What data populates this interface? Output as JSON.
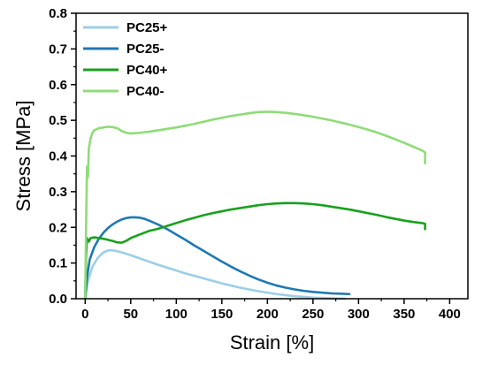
{
  "chart_data": {
    "type": "line",
    "title": "",
    "xlabel": "Strain [%]",
    "ylabel": "Stress [MPa]",
    "xlim": [
      -10,
      420
    ],
    "ylim": [
      0,
      0.8
    ],
    "xticks": [
      0,
      50,
      100,
      150,
      200,
      250,
      300,
      350,
      400
    ],
    "yticks": [
      0.0,
      0.1,
      0.2,
      0.3,
      0.4,
      0.5,
      0.6,
      0.7,
      0.8
    ],
    "xtick_labels": [
      "0",
      "50",
      "100",
      "150",
      "200",
      "250",
      "300",
      "350",
      "400"
    ],
    "ytick_labels": [
      "0.0",
      "0.1",
      "0.2",
      "0.3",
      "0.4",
      "0.5",
      "0.6",
      "0.7",
      "0.8"
    ],
    "grid": false,
    "legend_position": "top-left",
    "series": [
      {
        "name": "PC25+",
        "color": "#9ccfe6",
        "points": [
          [
            0,
            0
          ],
          [
            3,
            0.05
          ],
          [
            8,
            0.09
          ],
          [
            14,
            0.115
          ],
          [
            20,
            0.13
          ],
          [
            26,
            0.136
          ],
          [
            32,
            0.135
          ],
          [
            40,
            0.13
          ],
          [
            50,
            0.122
          ],
          [
            60,
            0.113
          ],
          [
            70,
            0.104
          ],
          [
            80,
            0.095
          ],
          [
            90,
            0.087
          ],
          [
            100,
            0.079
          ],
          [
            110,
            0.071
          ],
          [
            120,
            0.064
          ],
          [
            130,
            0.057
          ],
          [
            140,
            0.05
          ],
          [
            150,
            0.043
          ],
          [
            160,
            0.037
          ],
          [
            170,
            0.031
          ],
          [
            180,
            0.026
          ],
          [
            190,
            0.021
          ],
          [
            200,
            0.017
          ],
          [
            210,
            0.013
          ],
          [
            220,
            0.01
          ],
          [
            230,
            0.007
          ],
          [
            240,
            0.005
          ],
          [
            250,
            0.003
          ],
          [
            260,
            0.002
          ],
          [
            270,
            0.001
          ],
          [
            285,
            0.0
          ]
        ]
      },
      {
        "name": "PC25-",
        "color": "#1f78b4",
        "points": [
          [
            0,
            0
          ],
          [
            2,
            0.06
          ],
          [
            5,
            0.11
          ],
          [
            10,
            0.145
          ],
          [
            15,
            0.168
          ],
          [
            20,
            0.185
          ],
          [
            25,
            0.198
          ],
          [
            30,
            0.208
          ],
          [
            35,
            0.216
          ],
          [
            40,
            0.222
          ],
          [
            45,
            0.226
          ],
          [
            50,
            0.228
          ],
          [
            55,
            0.228
          ],
          [
            60,
            0.227
          ],
          [
            65,
            0.224
          ],
          [
            70,
            0.219
          ],
          [
            80,
            0.208
          ],
          [
            90,
            0.195
          ],
          [
            100,
            0.18
          ],
          [
            110,
            0.165
          ],
          [
            120,
            0.149
          ],
          [
            130,
            0.134
          ],
          [
            140,
            0.119
          ],
          [
            150,
            0.104
          ],
          [
            160,
            0.09
          ],
          [
            170,
            0.077
          ],
          [
            180,
            0.065
          ],
          [
            190,
            0.054
          ],
          [
            200,
            0.045
          ],
          [
            210,
            0.037
          ],
          [
            220,
            0.031
          ],
          [
            230,
            0.026
          ],
          [
            240,
            0.022
          ],
          [
            250,
            0.019
          ],
          [
            260,
            0.017
          ],
          [
            270,
            0.015
          ],
          [
            280,
            0.014
          ],
          [
            290,
            0.013
          ]
        ]
      },
      {
        "name": "PC40+",
        "color": "#18a11e",
        "points": [
          [
            0,
            0
          ],
          [
            1,
            0.12
          ],
          [
            2,
            0.17
          ],
          [
            4,
            0.16
          ],
          [
            6,
            0.17
          ],
          [
            10,
            0.172
          ],
          [
            15,
            0.17
          ],
          [
            20,
            0.168
          ],
          [
            25,
            0.165
          ],
          [
            30,
            0.162
          ],
          [
            35,
            0.158
          ],
          [
            40,
            0.157
          ],
          [
            45,
            0.162
          ],
          [
            50,
            0.17
          ],
          [
            55,
            0.175
          ],
          [
            60,
            0.18
          ],
          [
            65,
            0.185
          ],
          [
            70,
            0.19
          ],
          [
            75,
            0.193
          ],
          [
            80,
            0.196
          ],
          [
            85,
            0.2
          ],
          [
            90,
            0.204
          ],
          [
            100,
            0.212
          ],
          [
            110,
            0.22
          ],
          [
            120,
            0.227
          ],
          [
            130,
            0.234
          ],
          [
            140,
            0.24
          ],
          [
            150,
            0.245
          ],
          [
            160,
            0.25
          ],
          [
            170,
            0.254
          ],
          [
            180,
            0.258
          ],
          [
            190,
            0.262
          ],
          [
            200,
            0.265
          ],
          [
            210,
            0.267
          ],
          [
            220,
            0.268
          ],
          [
            230,
            0.268
          ],
          [
            240,
            0.267
          ],
          [
            250,
            0.265
          ],
          [
            260,
            0.262
          ],
          [
            270,
            0.258
          ],
          [
            280,
            0.254
          ],
          [
            290,
            0.25
          ],
          [
            300,
            0.245
          ],
          [
            310,
            0.24
          ],
          [
            320,
            0.235
          ],
          [
            330,
            0.229
          ],
          [
            340,
            0.224
          ],
          [
            350,
            0.219
          ],
          [
            360,
            0.215
          ],
          [
            370,
            0.212
          ],
          [
            373,
            0.21
          ],
          [
            373,
            0.195
          ]
        ]
      },
      {
        "name": "PC40-",
        "color": "#8fdc78",
        "points": [
          [
            0,
            0
          ],
          [
            1,
            0.2
          ],
          [
            2,
            0.37
          ],
          [
            3,
            0.34
          ],
          [
            4,
            0.42
          ],
          [
            6,
            0.45
          ],
          [
            8,
            0.465
          ],
          [
            10,
            0.472
          ],
          [
            15,
            0.478
          ],
          [
            20,
            0.48
          ],
          [
            25,
            0.482
          ],
          [
            30,
            0.481
          ],
          [
            35,
            0.478
          ],
          [
            40,
            0.47
          ],
          [
            45,
            0.465
          ],
          [
            50,
            0.463
          ],
          [
            60,
            0.465
          ],
          [
            70,
            0.468
          ],
          [
            80,
            0.472
          ],
          [
            90,
            0.476
          ],
          [
            100,
            0.48
          ],
          [
            110,
            0.485
          ],
          [
            120,
            0.49
          ],
          [
            130,
            0.496
          ],
          [
            140,
            0.502
          ],
          [
            150,
            0.507
          ],
          [
            160,
            0.512
          ],
          [
            170,
            0.516
          ],
          [
            180,
            0.52
          ],
          [
            190,
            0.523
          ],
          [
            200,
            0.524
          ],
          [
            210,
            0.523
          ],
          [
            220,
            0.521
          ],
          [
            230,
            0.518
          ],
          [
            240,
            0.514
          ],
          [
            250,
            0.51
          ],
          [
            260,
            0.505
          ],
          [
            270,
            0.5
          ],
          [
            280,
            0.494
          ],
          [
            290,
            0.488
          ],
          [
            300,
            0.481
          ],
          [
            310,
            0.474
          ],
          [
            320,
            0.466
          ],
          [
            330,
            0.457
          ],
          [
            340,
            0.447
          ],
          [
            350,
            0.437
          ],
          [
            360,
            0.426
          ],
          [
            370,
            0.415
          ],
          [
            373,
            0.41
          ],
          [
            373,
            0.38
          ]
        ]
      }
    ]
  }
}
